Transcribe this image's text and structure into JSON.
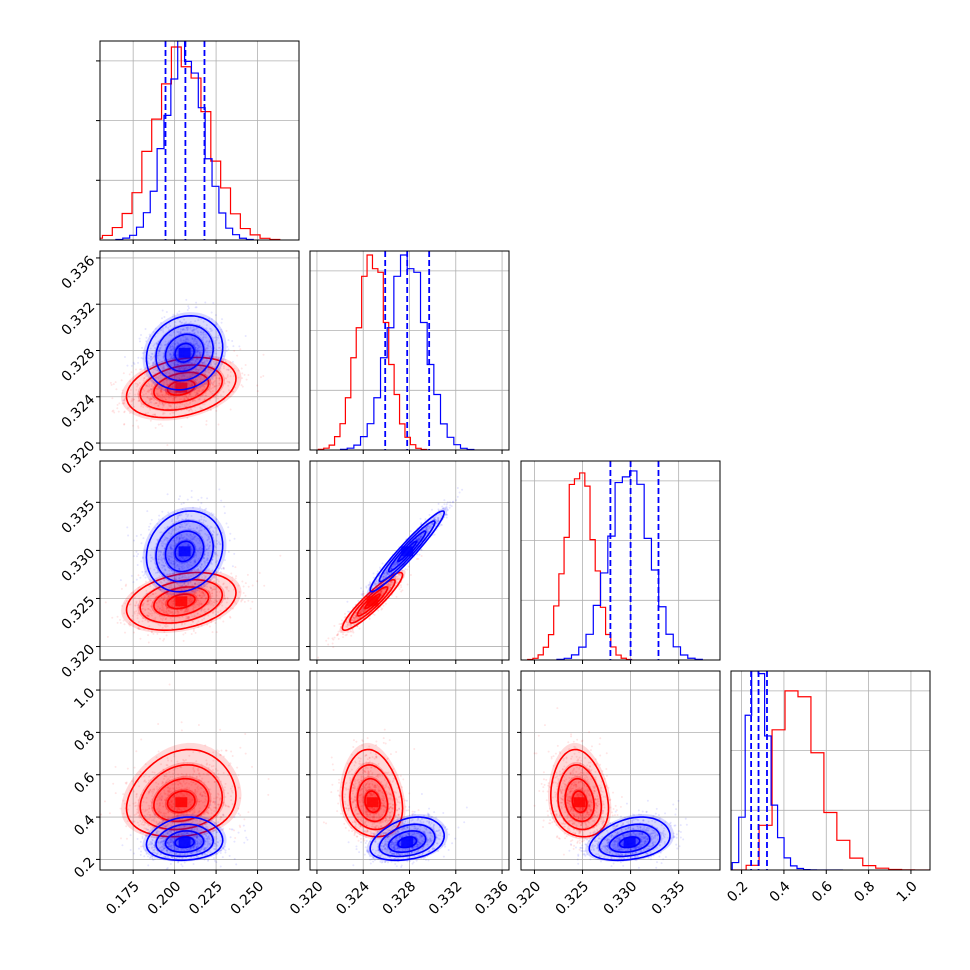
{
  "chart_data": {
    "type": "corner",
    "grid": true,
    "dimensions": [
      {
        "id": "p0",
        "range": [
          0.155,
          0.275
        ],
        "ticks": [
          "0.175",
          "0.200",
          "0.225",
          "0.250"
        ],
        "tick_values": [
          0.175,
          0.2,
          0.225,
          0.25
        ]
      },
      {
        "id": "p1",
        "range": [
          0.3194,
          0.3366
        ],
        "ticks": [
          "0.320",
          "0.324",
          "0.328",
          "0.332",
          "0.336"
        ],
        "tick_values": [
          0.32,
          0.324,
          0.328,
          0.332,
          0.336
        ]
      },
      {
        "id": "p2",
        "range": [
          0.3186,
          0.3393
        ],
        "ticks": [
          "0.320",
          "0.325",
          "0.330",
          "0.335"
        ],
        "tick_values": [
          0.32,
          0.325,
          0.33,
          0.335
        ]
      },
      {
        "id": "p3",
        "range": [
          0.15,
          1.09
        ],
        "ticks": [
          "0.2",
          "0.4",
          "0.6",
          "0.8",
          "1.0"
        ],
        "tick_values": [
          0.2,
          0.4,
          0.6,
          0.8,
          1.0
        ]
      }
    ],
    "series": [
      {
        "color": "#ff0000",
        "means": [
          0.204,
          0.3248,
          0.3247,
          0.47
        ],
        "sigmas": [
          0.0165,
          0.0013,
          0.0015,
          0.1
        ],
        "corr": {
          "0-1": 0.3,
          "0-2": 0.3,
          "1-2": 0.92,
          "0-3": 0.15,
          "1-3": -0.15,
          "2-3": -0.15
        },
        "hist_peaks": [
          0.97,
          0.98,
          0.94,
          0.9
        ]
      },
      {
        "color": "#0000ff",
        "means": [
          0.206,
          0.3278,
          0.3299,
          0.28
        ],
        "sigmas": [
          0.0115,
          0.0016,
          0.0021,
          0.05
        ],
        "corr": {
          "0-1": 0.15,
          "0-2": 0.15,
          "1-2": 0.96,
          "0-3": 0.1,
          "1-3": 0.3,
          "2-3": 0.3
        },
        "hist_peaks": [
          1.0,
          0.98,
          0.95,
          1.0
        ],
        "quantiles": [
          [
            0.1945,
            0.2065,
            0.218
          ],
          [
            0.3259,
            0.3278,
            0.3297
          ],
          [
            0.3279,
            0.33,
            0.3329
          ],
          [
            0.245,
            0.28,
            0.32
          ]
        ]
      }
    ]
  }
}
